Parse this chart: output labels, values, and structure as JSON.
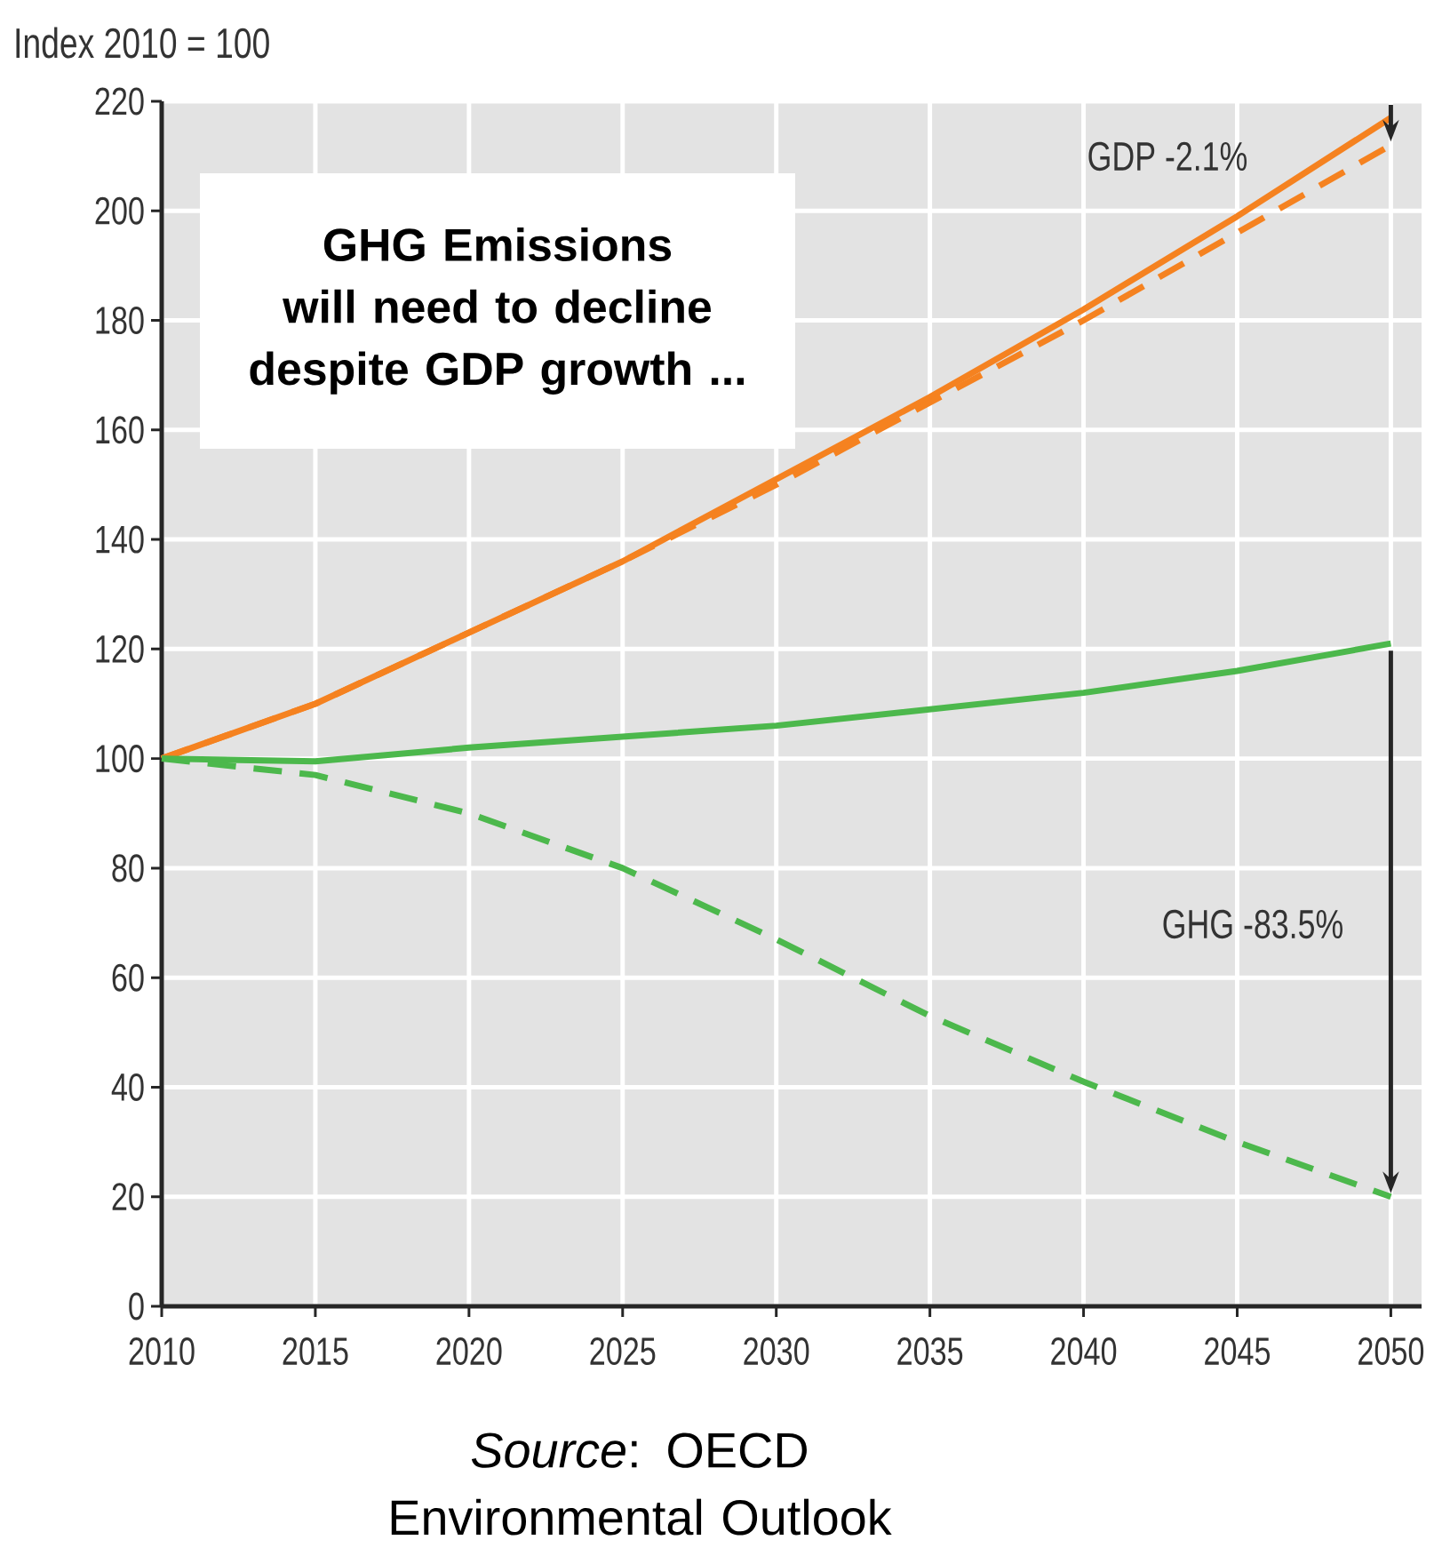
{
  "chart_data": {
    "type": "line",
    "ylabel": "Index 2010 = 100",
    "x": [
      2010,
      2015,
      2020,
      2025,
      2030,
      2035,
      2040,
      2045,
      2050
    ],
    "series": [
      {
        "color": "#f58220",
        "line_style": "solid",
        "values": [
          100,
          110,
          123,
          136,
          151,
          166,
          182,
          199,
          217
        ]
      },
      {
        "color": "#f58220",
        "line_style": "dashed",
        "values": [
          100,
          110,
          123,
          136,
          150,
          165,
          180,
          196,
          212
        ]
      },
      {
        "color": "#4cb84c",
        "line_style": "solid",
        "values": [
          100,
          99.5,
          102,
          104,
          106,
          109,
          112,
          116,
          121
        ]
      },
      {
        "color": "#4cb84c",
        "line_style": "dashed",
        "values": [
          100,
          97,
          90,
          80,
          67,
          53,
          41,
          30,
          20
        ]
      }
    ],
    "xlim": [
      2010,
      2051
    ],
    "ylim": [
      0,
      220
    ],
    "xticks": [
      2010,
      2015,
      2020,
      2025,
      2030,
      2035,
      2040,
      2045,
      2050
    ],
    "yticks": [
      0,
      20,
      40,
      60,
      80,
      100,
      120,
      140,
      160,
      180,
      200,
      220
    ],
    "grid": true,
    "marker": "none",
    "annotations": [
      "GHG Emissions will need to decline despite GDP growth ...",
      "GDP -2.1%",
      "GHG -83.5%",
      "*Source*: OECD Environmental Outlook"
    ]
  }
}
